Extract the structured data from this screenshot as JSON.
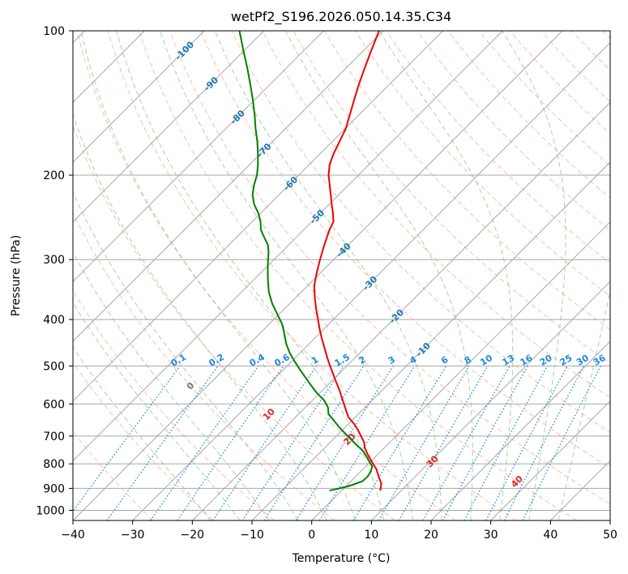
{
  "chart_data": {
    "type": "skew-t",
    "title": "wetPf2_S196.2026.050.14.35.C34",
    "xlabel": "Temperature (°C)",
    "ylabel": "Pressure (hPa)",
    "xlim": [
      -40,
      50
    ],
    "ylim": [
      1050,
      100
    ],
    "x_ticks": [
      -40,
      -30,
      -20,
      -10,
      0,
      10,
      20,
      30,
      40,
      50
    ],
    "x_tick_labels": [
      "−40",
      "−30",
      "−20",
      "−10",
      "0",
      "10",
      "20",
      "30",
      "40",
      "50"
    ],
    "y_ticks": [
      100,
      200,
      300,
      400,
      500,
      600,
      700,
      800,
      900,
      1000
    ],
    "y_tick_labels": [
      "100",
      "200",
      "300",
      "400",
      "500",
      "600",
      "700",
      "800",
      "900",
      "1000"
    ],
    "colors": {
      "temperature": "#ee0000",
      "dewpoint": "#008000",
      "isotherm": "#a8a8a8",
      "isobar": "#a8a8a8",
      "dry_adiabat": "#ff9f80",
      "moist_adiabat": "#80c080",
      "mixing_ratio": "#1e88e5",
      "isotherm_label": "#1f77b4",
      "dry_adiabat_label": "#d62728"
    },
    "isotherm_labels": [
      {
        "T": -100,
        "label": "-100"
      },
      {
        "T": -90,
        "label": "-90"
      },
      {
        "T": -80,
        "label": "-80"
      },
      {
        "T": -70,
        "label": "-70"
      },
      {
        "T": -60,
        "label": "-60"
      },
      {
        "T": -50,
        "label": "-50"
      },
      {
        "T": -40,
        "label": "-40"
      },
      {
        "T": -30,
        "label": "-30"
      },
      {
        "T": -20,
        "label": "-20"
      },
      {
        "T": -10,
        "label": "-10"
      }
    ],
    "adiabat_labels": [
      {
        "T": 0,
        "label": "0"
      },
      {
        "T": 10,
        "label": "10"
      },
      {
        "T": 20,
        "label": "20"
      },
      {
        "T": 30,
        "label": "30"
      },
      {
        "T": 40,
        "label": "40"
      }
    ],
    "mixing_ratios": [
      {
        "w": 0.1,
        "label": "0.1"
      },
      {
        "w": 0.2,
        "label": "0.2"
      },
      {
        "w": 0.4,
        "label": "0.4"
      },
      {
        "w": 0.6,
        "label": "0.6"
      },
      {
        "w": 1,
        "label": "1"
      },
      {
        "w": 1.5,
        "label": "1.5"
      },
      {
        "w": 2,
        "label": "2"
      },
      {
        "w": 3,
        "label": "3"
      },
      {
        "w": 4,
        "label": "4"
      },
      {
        "w": 6,
        "label": "6"
      },
      {
        "w": 8,
        "label": "8"
      },
      {
        "w": 10,
        "label": "10"
      },
      {
        "w": 13,
        "label": "13"
      },
      {
        "w": 16,
        "label": "16"
      },
      {
        "w": 20,
        "label": "20"
      },
      {
        "w": 25,
        "label": "25"
      },
      {
        "w": 30,
        "label": "30"
      },
      {
        "w": 36,
        "label": "36"
      }
    ],
    "series": [
      {
        "name": "Temperature",
        "color": "#ee0000",
        "points": [
          [
            910,
            6.5
          ],
          [
            880,
            5.5
          ],
          [
            860,
            4.4
          ],
          [
            840,
            3.3
          ],
          [
            820,
            2.2
          ],
          [
            800,
            0.8
          ],
          [
            780,
            -0.6
          ],
          [
            760,
            -2.0
          ],
          [
            740,
            -3.3
          ],
          [
            720,
            -4.4
          ],
          [
            700,
            -5.9
          ],
          [
            680,
            -7.4
          ],
          [
            660,
            -9.1
          ],
          [
            640,
            -11.1
          ],
          [
            620,
            -12.6
          ],
          [
            600,
            -14.1
          ],
          [
            580,
            -15.7
          ],
          [
            560,
            -17.3
          ],
          [
            540,
            -19.1
          ],
          [
            520,
            -20.9
          ],
          [
            500,
            -22.8
          ],
          [
            480,
            -24.7
          ],
          [
            460,
            -26.6
          ],
          [
            440,
            -28.6
          ],
          [
            420,
            -30.6
          ],
          [
            400,
            -32.6
          ],
          [
            380,
            -34.7
          ],
          [
            360,
            -36.8
          ],
          [
            340,
            -38.9
          ],
          [
            320,
            -40.6
          ],
          [
            300,
            -42.3
          ],
          [
            280,
            -44.0
          ],
          [
            260,
            -45.7
          ],
          [
            250,
            -46.4
          ],
          [
            240,
            -47.9
          ],
          [
            230,
            -49.6
          ],
          [
            220,
            -51.3
          ],
          [
            210,
            -53.1
          ],
          [
            200,
            -55.0
          ],
          [
            190,
            -56.6
          ],
          [
            180,
            -57.8
          ],
          [
            170,
            -58.8
          ],
          [
            160,
            -59.9
          ],
          [
            150,
            -61.5
          ],
          [
            140,
            -63.2
          ],
          [
            130,
            -65.0
          ],
          [
            120,
            -66.8
          ],
          [
            110,
            -68.7
          ],
          [
            100,
            -70.7
          ]
        ]
      },
      {
        "name": "Dewpoint",
        "color": "#008000",
        "points": [
          [
            910,
            -2.0
          ],
          [
            890,
            0.5
          ],
          [
            870,
            1.9
          ],
          [
            850,
            2.0
          ],
          [
            830,
            1.7
          ],
          [
            810,
            1.1
          ],
          [
            790,
            -0.3
          ],
          [
            770,
            -1.7
          ],
          [
            750,
            -3.2
          ],
          [
            730,
            -5.2
          ],
          [
            710,
            -7.1
          ],
          [
            690,
            -9.1
          ],
          [
            670,
            -11.1
          ],
          [
            650,
            -13.0
          ],
          [
            630,
            -15.0
          ],
          [
            610,
            -16.2
          ],
          [
            590,
            -18.0
          ],
          [
            570,
            -20.4
          ],
          [
            550,
            -22.6
          ],
          [
            530,
            -24.8
          ],
          [
            510,
            -27.1
          ],
          [
            490,
            -29.4
          ],
          [
            470,
            -31.7
          ],
          [
            450,
            -33.8
          ],
          [
            430,
            -35.7
          ],
          [
            410,
            -37.7
          ],
          [
            390,
            -40.3
          ],
          [
            370,
            -43.0
          ],
          [
            350,
            -45.5
          ],
          [
            330,
            -47.7
          ],
          [
            310,
            -49.9
          ],
          [
            290,
            -52.1
          ],
          [
            280,
            -53.4
          ],
          [
            270,
            -55.3
          ],
          [
            260,
            -57.2
          ],
          [
            250,
            -58.6
          ],
          [
            240,
            -60.4
          ],
          [
            230,
            -62.6
          ],
          [
            220,
            -64.4
          ],
          [
            210,
            -65.8
          ],
          [
            200,
            -67.0
          ],
          [
            190,
            -68.6
          ],
          [
            180,
            -70.5
          ],
          [
            170,
            -72.6
          ],
          [
            160,
            -75.0
          ],
          [
            150,
            -77.4
          ],
          [
            140,
            -80.1
          ],
          [
            130,
            -83.1
          ],
          [
            120,
            -86.4
          ],
          [
            110,
            -90.1
          ],
          [
            100,
            -94.1
          ]
        ]
      }
    ]
  }
}
